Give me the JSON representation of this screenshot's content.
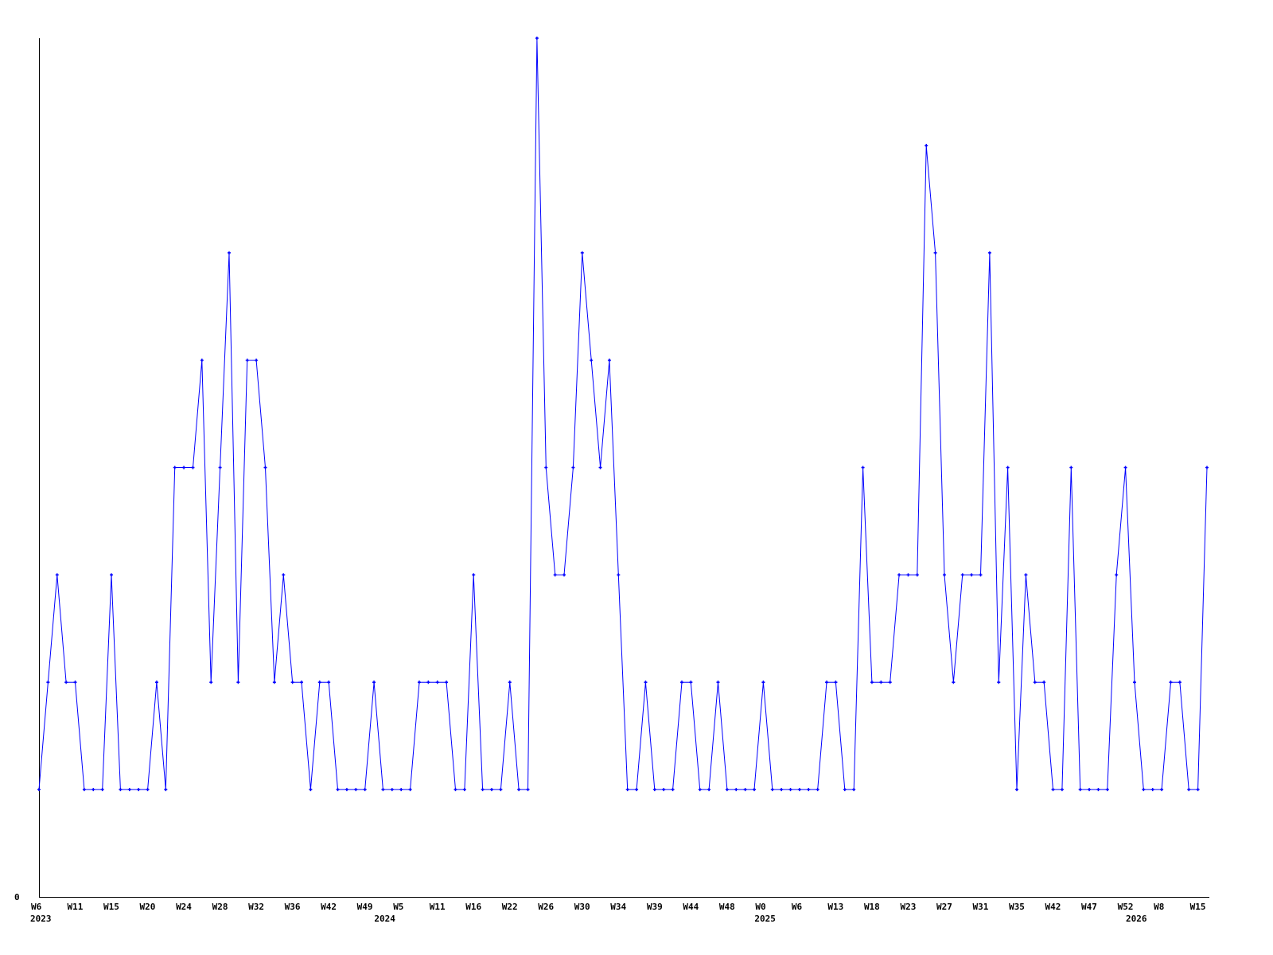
{
  "chart_data": {
    "type": "line",
    "title": "",
    "xlabel": "",
    "ylabel": "",
    "ylim": [
      0,
      8
    ],
    "y_tick_labels": [
      "0"
    ],
    "grid": false,
    "legend": "none",
    "series_color": "#0000ff",
    "axis_color": "#000000",
    "values": [
      1,
      2,
      3,
      2,
      2,
      1,
      1,
      1,
      3,
      1,
      1,
      1,
      1,
      2,
      1,
      4,
      4,
      4,
      5,
      2,
      4,
      6,
      2,
      5,
      5,
      4,
      2,
      3,
      2,
      2,
      1,
      2,
      2,
      1,
      1,
      1,
      1,
      2,
      1,
      1,
      1,
      1,
      2,
      2,
      2,
      2,
      1,
      1,
      3,
      1,
      1,
      1,
      2,
      1,
      1,
      8,
      4,
      3,
      3,
      4,
      6,
      5,
      4,
      5,
      3,
      1,
      1,
      2,
      1,
      1,
      1,
      2,
      2,
      1,
      1,
      2,
      1,
      1,
      1,
      1,
      2,
      1,
      1,
      1,
      1,
      1,
      1,
      2,
      2,
      1,
      1,
      4,
      2,
      2,
      2,
      3,
      3,
      3,
      7,
      6,
      3,
      2,
      3,
      3,
      3,
      6,
      2,
      4,
      1,
      3,
      2,
      2,
      1,
      1,
      4,
      1,
      1,
      1,
      1,
      3,
      4,
      2,
      1,
      1,
      1,
      2,
      2,
      1,
      1,
      4
    ],
    "x_tick_labels": [
      "W6",
      "W11",
      "W15",
      "W20",
      "W24",
      "W28",
      "W32",
      "W36",
      "W42",
      "W49",
      "W5",
      "W11",
      "W16",
      "W22",
      "W26",
      "W30",
      "W34",
      "W39",
      "W44",
      "W48",
      "W0",
      "W6",
      "W13",
      "W18",
      "W23",
      "W27",
      "W31",
      "W35",
      "W42",
      "W47",
      "W52",
      "W8",
      "W15"
    ],
    "x_tick_every": 4,
    "year_labels": [
      {
        "label": "2023",
        "at_index": 0
      },
      {
        "label": "2024",
        "at_index": 38
      },
      {
        "label": "2025",
        "at_index": 80
      },
      {
        "label": "2026",
        "at_index": 121
      }
    ]
  }
}
